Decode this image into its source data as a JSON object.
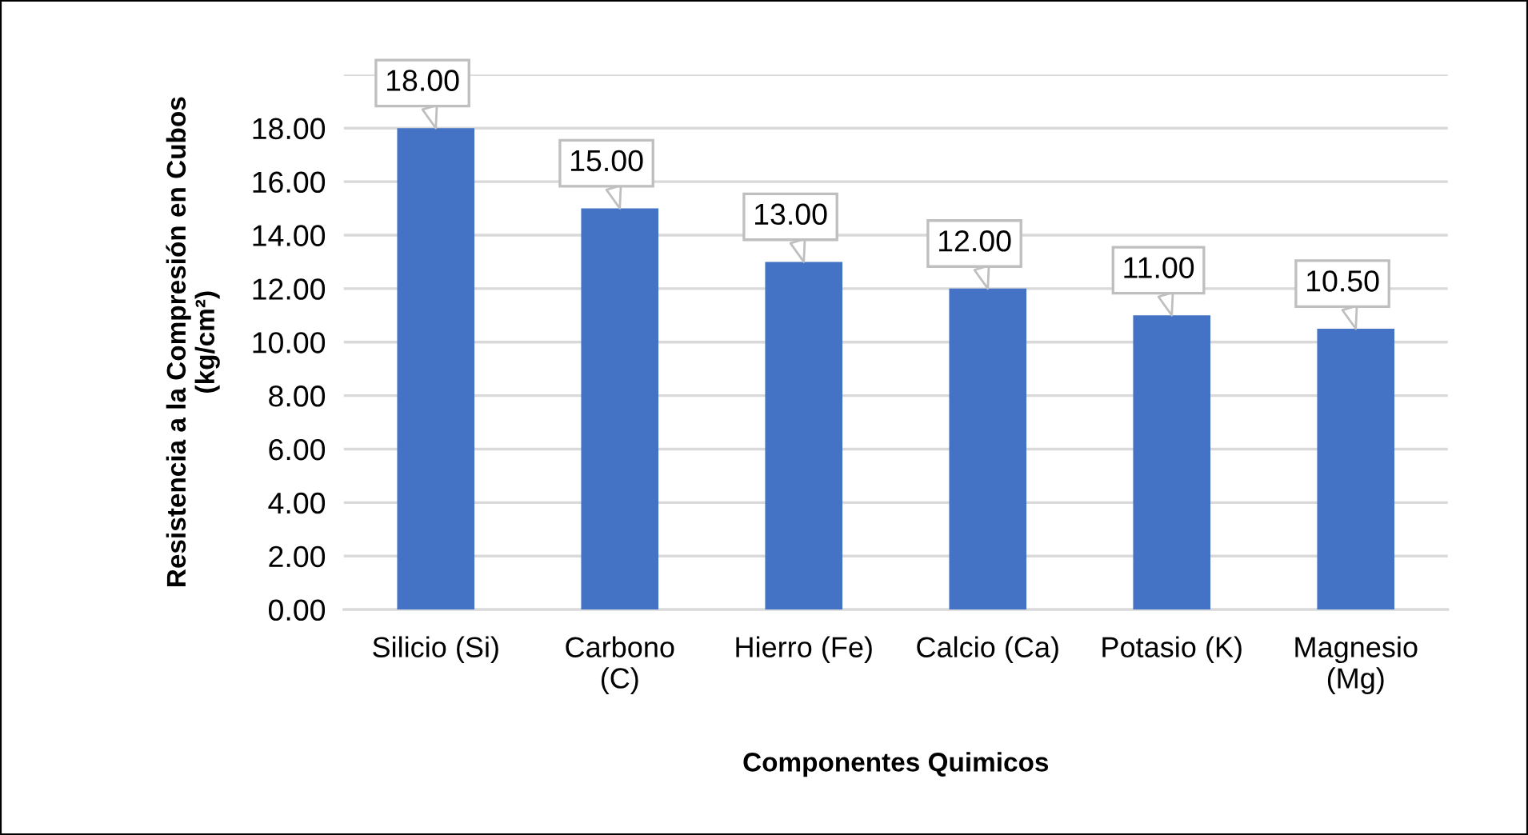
{
  "chart_data": {
    "type": "bar",
    "categories": [
      "Silicio (Si)",
      "Carbono\n(C)",
      "Hierro (Fe)",
      "Calcio (Ca)",
      "Potasio (K)",
      "Magnesio\n(Mg)"
    ],
    "values": [
      18,
      15,
      13,
      12,
      11,
      10.5
    ],
    "color": "#4472c4",
    "value_labels": [
      "18.00",
      "15.00",
      "13.00",
      "12.00",
      "11.00",
      "10.50"
    ],
    "xlabel": "Componentes Quimicos",
    "ylabel": "Resistencia a la Compresión en Cubos\n(kg/cm²)",
    "ylim": [
      0,
      20
    ],
    "yticks": [
      {
        "value": 0,
        "label": "0.00"
      },
      {
        "value": 2,
        "label": "2.00"
      },
      {
        "value": 4,
        "label": "4.00"
      },
      {
        "value": 6,
        "label": "6.00"
      },
      {
        "value": 8,
        "label": "8.00"
      },
      {
        "value": 10,
        "label": "10.00"
      },
      {
        "value": 12,
        "label": "12.00"
      },
      {
        "value": 14,
        "label": "14.00"
      },
      {
        "value": 16,
        "label": "16.00"
      },
      {
        "value": 18,
        "label": "18.00"
      },
      {
        "value": 20,
        "label": null
      }
    ],
    "grid": "y"
  }
}
